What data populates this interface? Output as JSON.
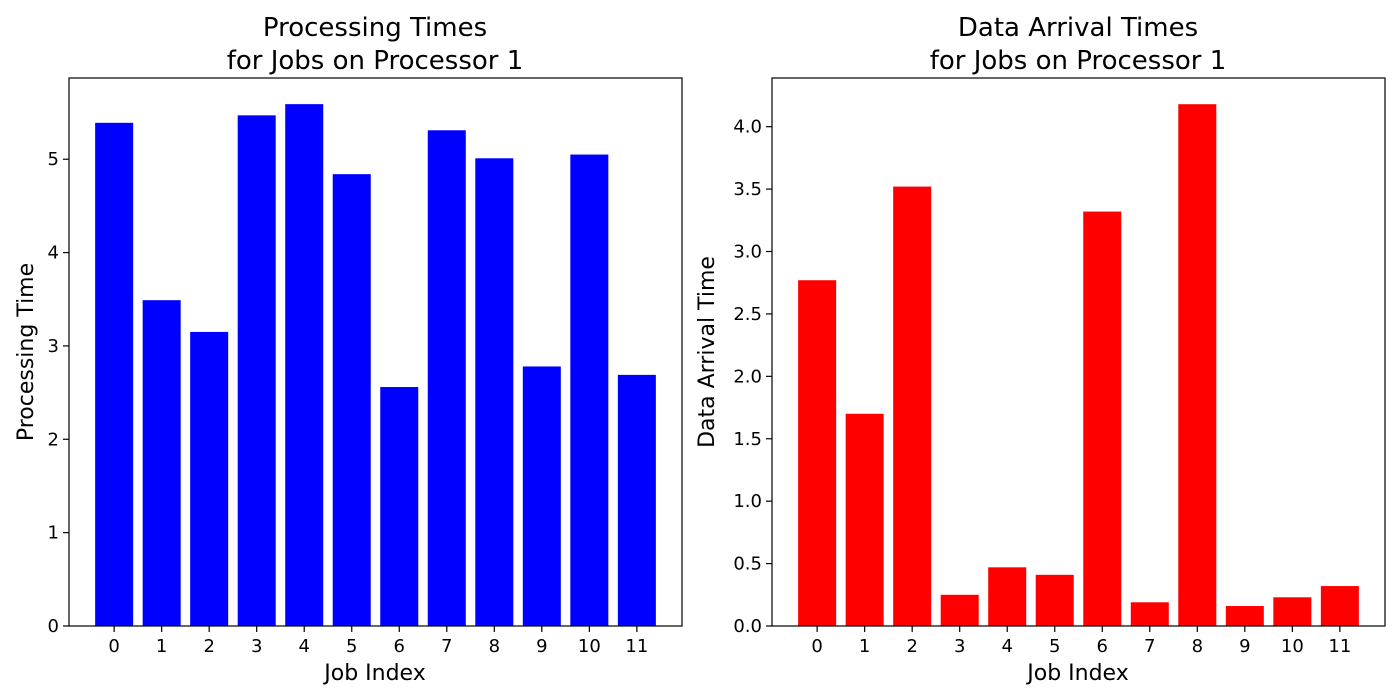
{
  "chart_data": [
    {
      "type": "bar",
      "title": [
        "Processing Times",
        "for Jobs on Processor 1"
      ],
      "xlabel": "Job Index",
      "ylabel": "Processing Time",
      "categories": [
        "0",
        "1",
        "2",
        "3",
        "4",
        "5",
        "6",
        "7",
        "8",
        "9",
        "10",
        "11"
      ],
      "values": [
        5.39,
        3.49,
        3.15,
        5.47,
        5.59,
        4.84,
        2.56,
        5.31,
        5.01,
        2.78,
        5.05,
        2.69
      ],
      "ylim": [
        0,
        5.87
      ],
      "yticks": [
        0,
        1,
        2,
        3,
        4,
        5
      ],
      "ytick_labels": [
        "0",
        "1",
        "2",
        "3",
        "4",
        "5"
      ],
      "color": "#0000ff",
      "grid": false,
      "legend": "none"
    },
    {
      "type": "bar",
      "title": [
        "Data Arrival Times",
        "for Jobs on Processor 1"
      ],
      "xlabel": "Job Index",
      "ylabel": "Data Arrival Time",
      "categories": [
        "0",
        "1",
        "2",
        "3",
        "4",
        "5",
        "6",
        "7",
        "8",
        "9",
        "10",
        "11"
      ],
      "values": [
        2.77,
        1.7,
        3.52,
        0.25,
        0.47,
        0.41,
        3.32,
        0.19,
        4.18,
        0.16,
        0.23,
        0.32
      ],
      "ylim": [
        0,
        4.39
      ],
      "yticks": [
        0,
        0.5,
        1.0,
        1.5,
        2.0,
        2.5,
        3.0,
        3.5,
        4.0
      ],
      "ytick_labels": [
        "0.0",
        "0.5",
        "1.0",
        "1.5",
        "2.0",
        "2.5",
        "3.0",
        "3.5",
        "4.0"
      ],
      "color": "#ff0000",
      "grid": false,
      "legend": "none"
    }
  ]
}
